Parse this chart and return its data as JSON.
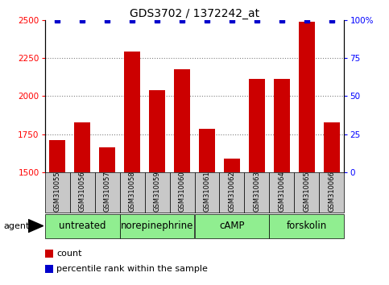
{
  "title": "GDS3702 / 1372242_at",
  "samples": [
    "GSM310055",
    "GSM310056",
    "GSM310057",
    "GSM310058",
    "GSM310059",
    "GSM310060",
    "GSM310061",
    "GSM310062",
    "GSM310063",
    "GSM310064",
    "GSM310065",
    "GSM310066"
  ],
  "counts": [
    1710,
    1830,
    1665,
    2295,
    2040,
    2175,
    1785,
    1590,
    2115,
    2115,
    2490,
    1830
  ],
  "percentiles": [
    100,
    100,
    100,
    100,
    100,
    100,
    100,
    100,
    100,
    100,
    100,
    100
  ],
  "ylim_left": [
    1500,
    2500
  ],
  "ylim_right": [
    0,
    100
  ],
  "yticks_left": [
    1500,
    1750,
    2000,
    2250,
    2500
  ],
  "yticks_right": [
    0,
    25,
    50,
    75,
    100
  ],
  "bar_color": "#cc0000",
  "percentile_color": "#0000cc",
  "groups": [
    {
      "label": "untreated",
      "start": 0,
      "end": 3
    },
    {
      "label": "norepinephrine",
      "start": 3,
      "end": 6
    },
    {
      "label": "cAMP",
      "start": 6,
      "end": 9
    },
    {
      "label": "forskolin",
      "start": 9,
      "end": 12
    }
  ],
  "group_color": "#90ee90",
  "sample_bg_color": "#c8c8c8",
  "agent_label": "agent",
  "legend_count_label": "count",
  "legend_percentile_label": "percentile rank within the sample",
  "title_fontsize": 10,
  "tick_fontsize": 7.5,
  "label_fontsize": 8,
  "group_fontsize": 8.5,
  "sample_fontsize": 6
}
